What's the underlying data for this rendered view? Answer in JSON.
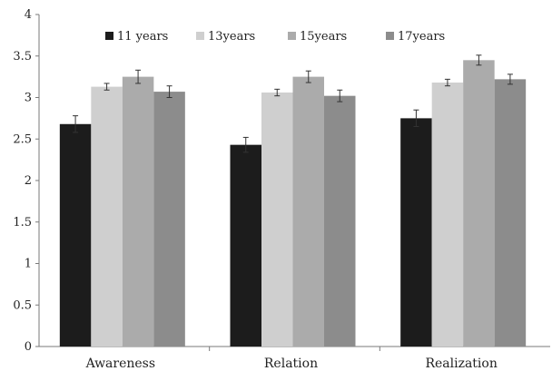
{
  "chart_data": {
    "type": "bar",
    "categories": [
      "Awareness",
      "Relation",
      "Realization"
    ],
    "series": [
      {
        "name": "11 years",
        "values": [
          2.68,
          2.43,
          2.75
        ],
        "errors": [
          0.1,
          0.09,
          0.1
        ],
        "color": "#1c1c1c"
      },
      {
        "name": "13years",
        "values": [
          3.13,
          3.06,
          3.18
        ],
        "errors": [
          0.04,
          0.04,
          0.04
        ],
        "color": "#cfcfcf"
      },
      {
        "name": "15years",
        "values": [
          3.25,
          3.25,
          3.45
        ],
        "errors": [
          0.08,
          0.07,
          0.06
        ],
        "color": "#ababab"
      },
      {
        "name": "17years",
        "values": [
          3.07,
          3.02,
          3.22
        ],
        "errors": [
          0.07,
          0.07,
          0.06
        ],
        "color": "#8c8c8c"
      }
    ],
    "yticks": [
      "0",
      "0.5",
      "1",
      "1.5",
      "2",
      "2.5",
      "3",
      "3.5",
      "4"
    ],
    "ylim": [
      0,
      4
    ],
    "grid": false,
    "legend_position": "top"
  }
}
